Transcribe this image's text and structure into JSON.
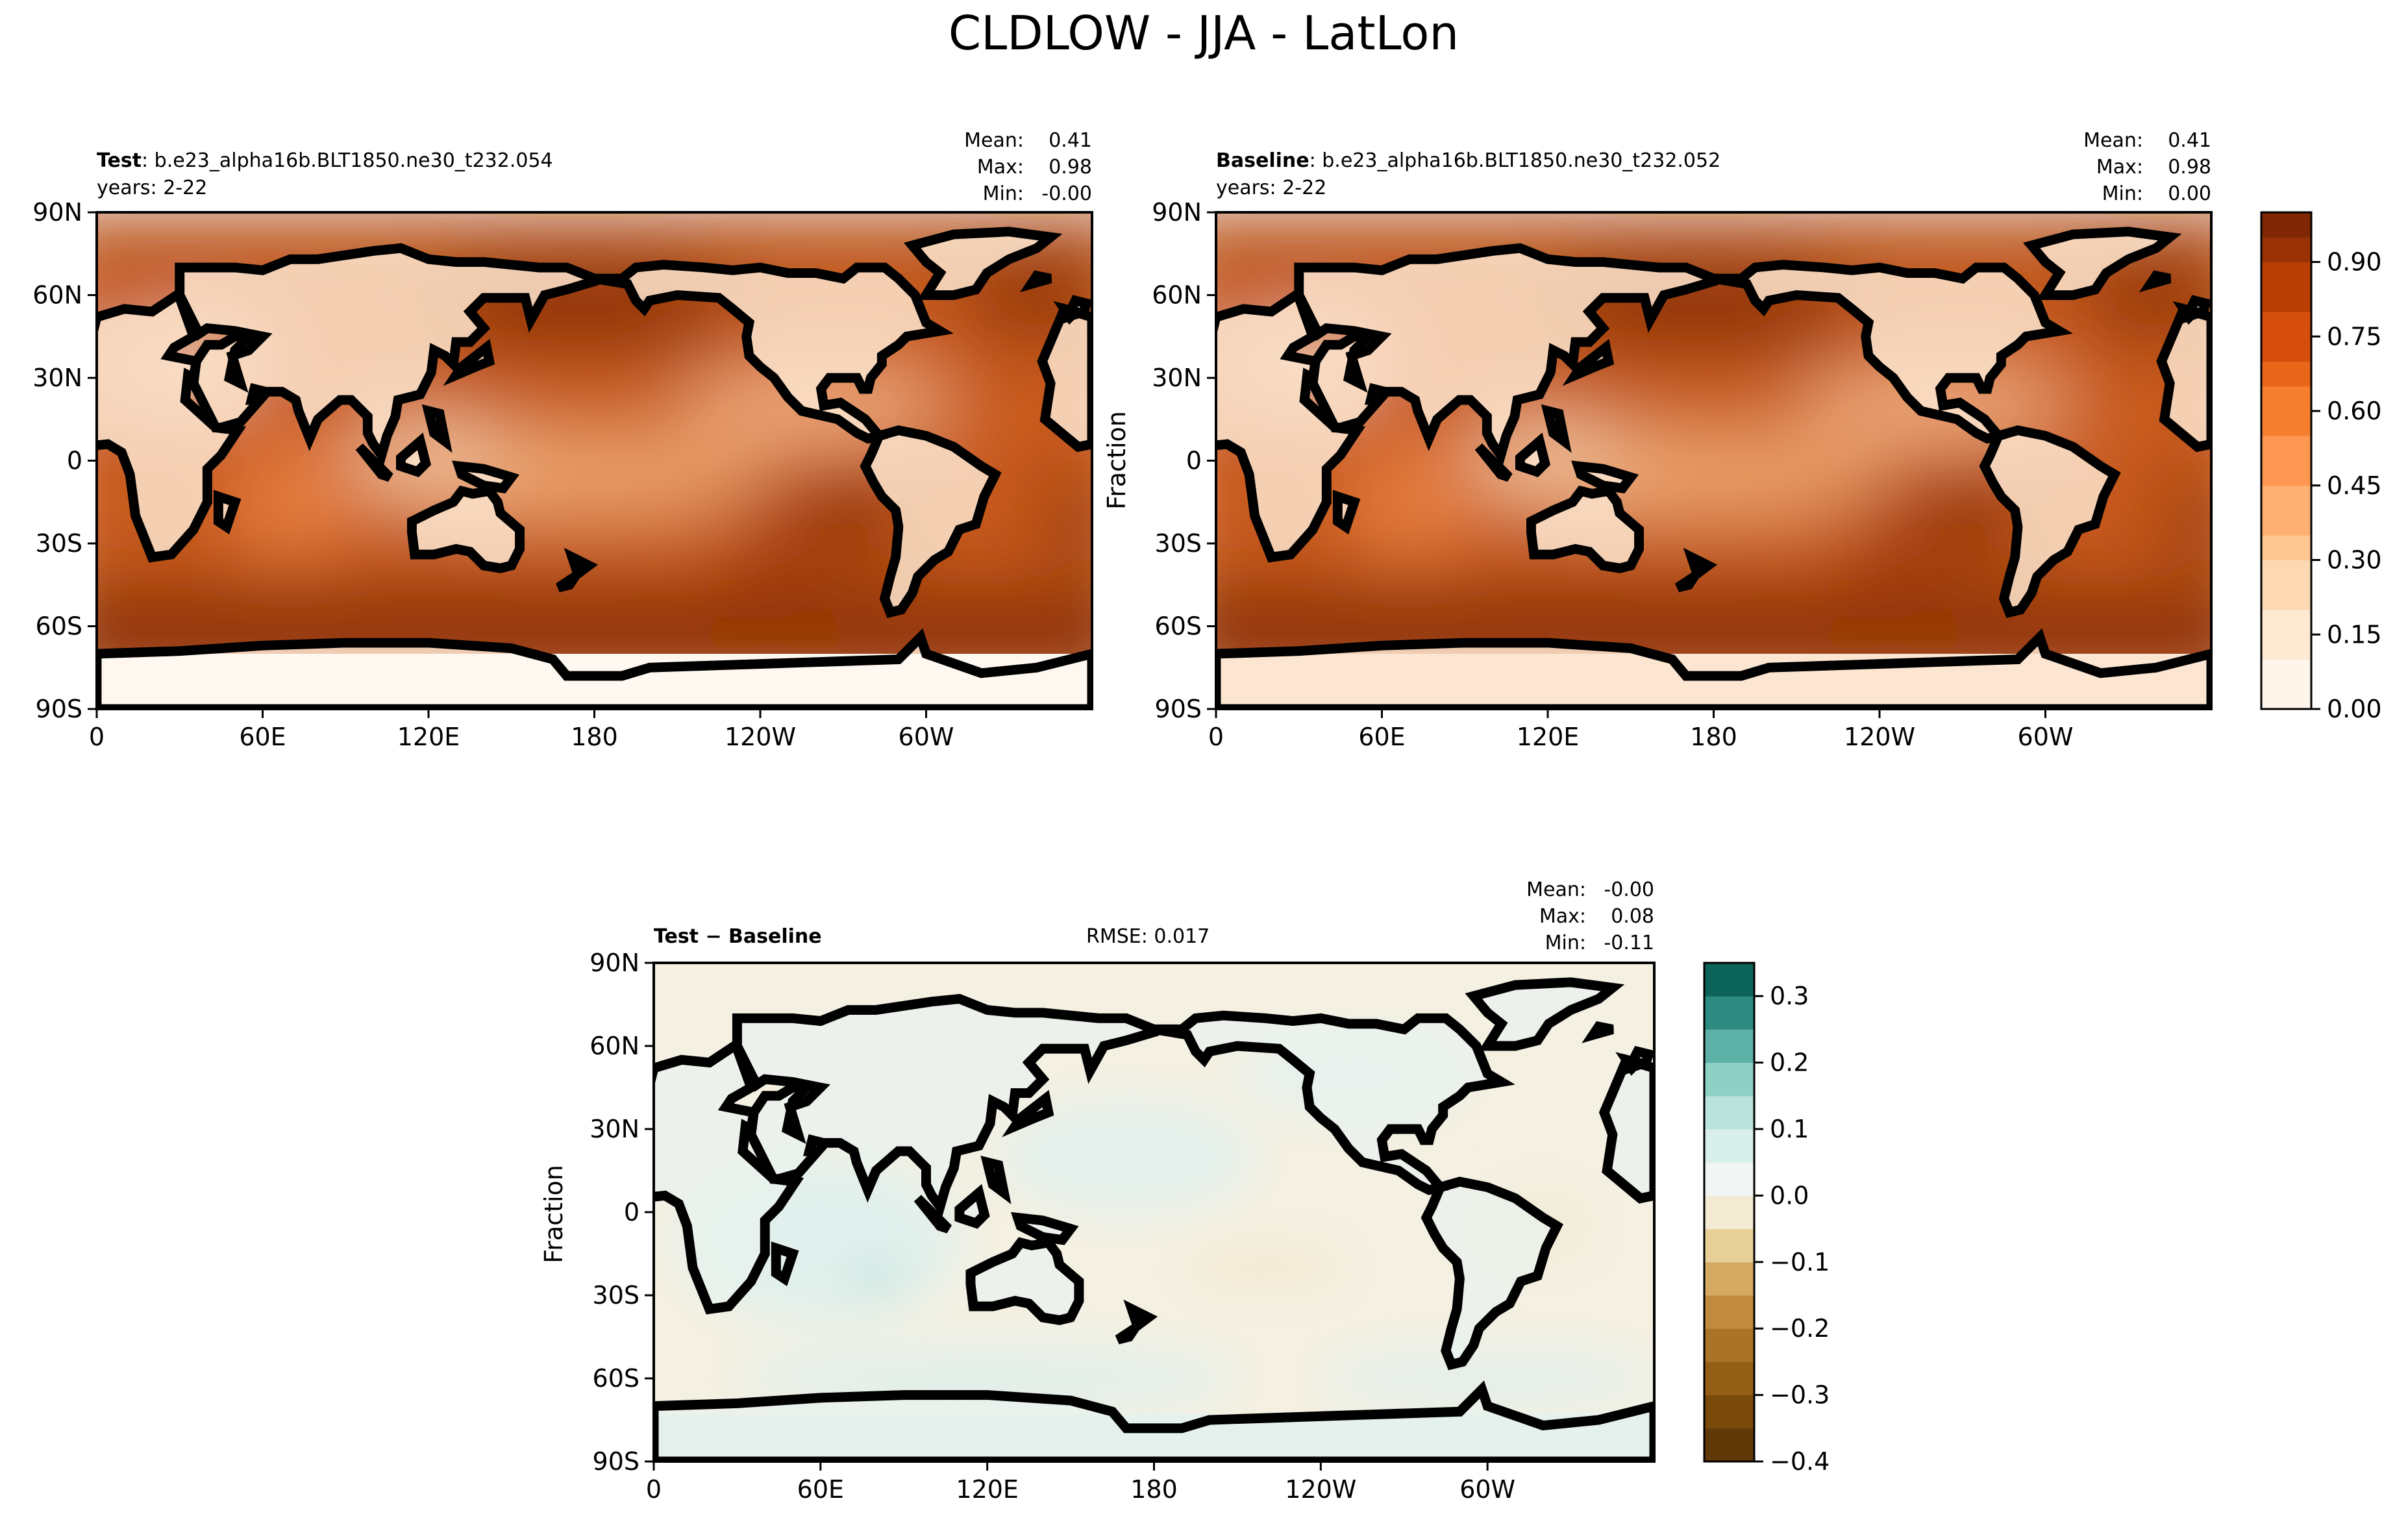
{
  "figure_title": "CLDLOW - JJA - LatLon",
  "colors": {
    "seq": [
      "#fff5eb",
      "#fee9d3",
      "#fdd9b3",
      "#fdc692",
      "#fdb072",
      "#fd9751",
      "#f67f2f",
      "#e9651a",
      "#d54e0c",
      "#b83e04",
      "#983204",
      "#7f2704"
    ],
    "diff": [
      "#543005",
      "#8c510a",
      "#bf812d",
      "#dfc27d",
      "#f6e8c3",
      "#f5f5f5",
      "#c7eae5",
      "#80cdc1",
      "#35978f",
      "#01665e",
      "#003c30"
    ],
    "ocean_seq": "#ffffff"
  },
  "chart_data": [
    {
      "id": "test",
      "type": "heatmap",
      "title_bold": "Test",
      "title_rest": ": b.e23_alpha16b.BLT1850.ne30_t232.054",
      "years": "years: 2-22",
      "stats": [
        {
          "label": "Mean:",
          "value": "0.41"
        },
        {
          "label": "Max:",
          "value": "0.98"
        },
        {
          "label": "Min:",
          "value": "-0.00"
        }
      ],
      "xticks": [
        "0",
        "60E",
        "120E",
        "180",
        "120W",
        "60W"
      ],
      "xtick_values": [
        0,
        60,
        120,
        180,
        240,
        300
      ],
      "yticks": [
        "90N",
        "60N",
        "30N",
        "0",
        "30S",
        "60S",
        "90S"
      ],
      "ytick_values": [
        90,
        60,
        30,
        0,
        -30,
        -60,
        -90
      ],
      "xlim": [
        0,
        360
      ],
      "ylim": [
        -90,
        90
      ],
      "ylabel": ""
    },
    {
      "id": "baseline",
      "type": "heatmap",
      "title_bold": "Baseline",
      "title_rest": ": b.e23_alpha16b.BLT1850.ne30_t232.052",
      "years": "years: 2-22",
      "stats": [
        {
          "label": "Mean:",
          "value": "0.41"
        },
        {
          "label": "Max:",
          "value": "0.98"
        },
        {
          "label": "Min:",
          "value": "0.00"
        }
      ],
      "xticks": [
        "0",
        "60E",
        "120E",
        "180",
        "120W",
        "60W"
      ],
      "xtick_values": [
        0,
        60,
        120,
        180,
        240,
        300
      ],
      "yticks": [
        "90N",
        "60N",
        "30N",
        "0",
        "30S",
        "60S",
        "90S"
      ],
      "ytick_values": [
        90,
        60,
        30,
        0,
        -30,
        -60,
        -90
      ],
      "xlim": [
        0,
        360
      ],
      "ylim": [
        -90,
        90
      ],
      "ylabel": "Fraction",
      "colorbar": {
        "range": [
          0,
          1.0
        ],
        "ticks": [
          "0.00",
          "0.15",
          "0.30",
          "0.45",
          "0.60",
          "0.75",
          "0.90"
        ],
        "tick_values": [
          0,
          0.15,
          0.3,
          0.45,
          0.6,
          0.75,
          0.9
        ]
      }
    },
    {
      "id": "diff",
      "type": "heatmap",
      "title_bold": "Test − Baseline",
      "rmse": "RMSE: 0.017",
      "stats": [
        {
          "label": "Mean:",
          "value": "-0.00"
        },
        {
          "label": "Max:",
          "value": "0.08"
        },
        {
          "label": "Min:",
          "value": "-0.11"
        }
      ],
      "xticks": [
        "0",
        "60E",
        "120E",
        "180",
        "120W",
        "60W"
      ],
      "xtick_values": [
        0,
        60,
        120,
        180,
        240,
        300
      ],
      "yticks": [
        "90N",
        "60N",
        "30N",
        "0",
        "30S",
        "60S",
        "90S"
      ],
      "ytick_values": [
        90,
        60,
        30,
        0,
        -30,
        -60,
        -90
      ],
      "xlim": [
        0,
        360
      ],
      "ylim": [
        -90,
        90
      ],
      "ylabel": "Fraction",
      "colorbar": {
        "range": [
          -0.4,
          0.35
        ],
        "ticks": [
          "0.3",
          "0.2",
          "0.1",
          "0.0",
          "−0.1",
          "−0.2",
          "−0.3",
          "−0.4"
        ],
        "tick_values": [
          0.3,
          0.2,
          0.1,
          0.0,
          -0.1,
          -0.2,
          -0.3,
          -0.4
        ]
      }
    }
  ]
}
